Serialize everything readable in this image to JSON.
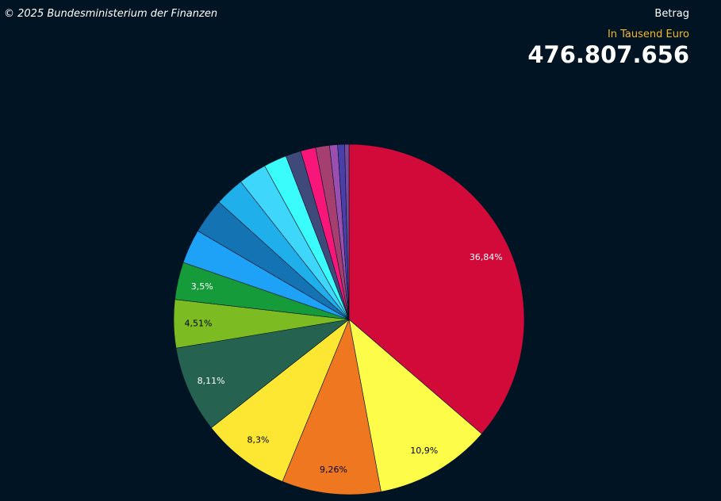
{
  "header": {
    "copyright": "© 2025 Bundesministerium der Finanzen",
    "measure_label": "Betrag",
    "unit_label": "In Tausend Euro",
    "total_value": "476.807.656"
  },
  "chart_data": {
    "type": "pie",
    "start_angle_deg": 0,
    "direction": "clockwise",
    "slices": [
      {
        "value": 36.84,
        "label": "36,84%",
        "color": "#d10a3a",
        "label_color": "#ffffff"
      },
      {
        "value": 10.9,
        "label": "10,9%",
        "color": "#fdfc48",
        "label_color": "#000000"
      },
      {
        "value": 9.26,
        "label": "9,26%",
        "color": "#ef7720",
        "label_color": "#000000"
      },
      {
        "value": 8.3,
        "label": "8,3%",
        "color": "#fde733",
        "label_color": "#000000"
      },
      {
        "value": 8.11,
        "label": "8,11%",
        "color": "#256350",
        "label_color": "#ffffff"
      },
      {
        "value": 4.51,
        "label": "4,51%",
        "color": "#7cbb22",
        "label_color": "#000000"
      },
      {
        "value": 3.5,
        "label": "3,5%",
        "color": "#169b3b",
        "label_color": "#ffffff"
      },
      {
        "value": 3.2,
        "label": "",
        "color": "#1ea2f8",
        "label_color": "#ffffff"
      },
      {
        "value": 3.3,
        "label": "",
        "color": "#1473b3",
        "label_color": "#ffffff"
      },
      {
        "value": 2.75,
        "label": "",
        "color": "#1fb0ec",
        "label_color": "#ffffff"
      },
      {
        "value": 2.65,
        "label": "",
        "color": "#3fd6fb",
        "label_color": "#ffffff"
      },
      {
        "value": 2.15,
        "label": "",
        "color": "#3afcfb",
        "label_color": "#ffffff"
      },
      {
        "value": 1.45,
        "label": "",
        "color": "#3f4a7a",
        "label_color": "#ffffff"
      },
      {
        "value": 1.4,
        "label": "",
        "color": "#f8167a",
        "label_color": "#ffffff"
      },
      {
        "value": 1.3,
        "label": "",
        "color": "#a43f6f",
        "label_color": "#ffffff"
      },
      {
        "value": 0.75,
        "label": "",
        "color": "#9a4fb0",
        "label_color": "#ffffff"
      },
      {
        "value": 0.65,
        "label": "",
        "color": "#4a3fa8",
        "label_color": "#ffffff"
      },
      {
        "value": 0.4,
        "label": "",
        "color": "#7a4a9a",
        "label_color": "#ffffff"
      }
    ]
  }
}
